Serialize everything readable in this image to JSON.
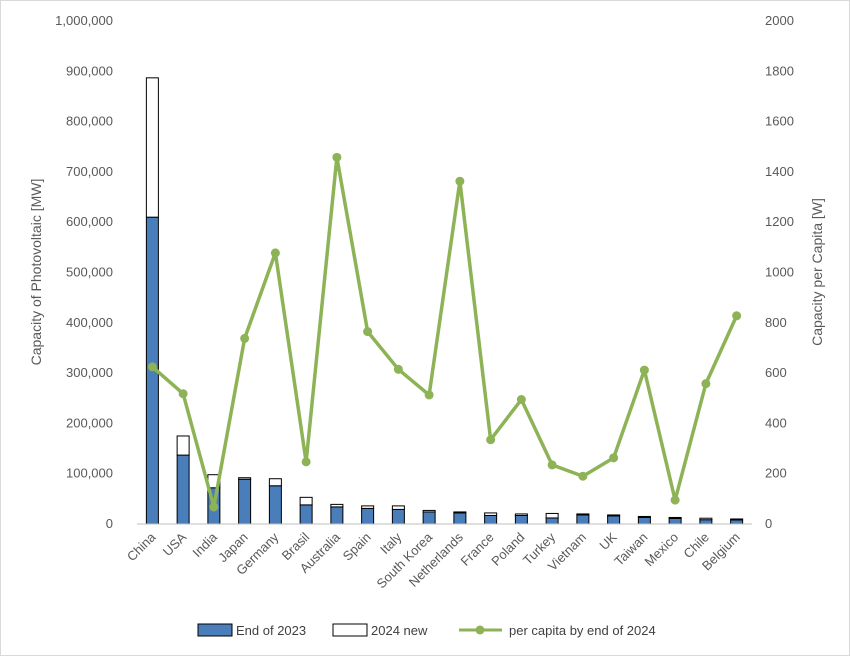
{
  "chart_data": {
    "type": "bar",
    "title": "",
    "categories": [
      "China",
      "USA",
      "India",
      "Japan",
      "Germany",
      "Brasil",
      "Australia",
      "Spain",
      "Italy",
      "South Korea",
      "Netherlands",
      "France",
      "Poland",
      "Turkey",
      "Vietnam",
      "UK",
      "Taiwan",
      "Mexico",
      "Chile",
      "Belgium"
    ],
    "ylabel": "Capacity of Photovoltaic [MW]",
    "y2label": "Capacity per Capita [W]",
    "ylim": [
      0,
      1000000
    ],
    "y2lim": [
      0,
      2000
    ],
    "yticks": [
      "0",
      "100,000",
      "200,000",
      "300,000",
      "400,000",
      "500,000",
      "600,000",
      "700,000",
      "800,000",
      "900,000",
      "1,000,000"
    ],
    "y2ticks": [
      "0",
      "200",
      "400",
      "600",
      "800",
      "1000",
      "1200",
      "1400",
      "1600",
      "1800",
      "2000"
    ],
    "series": [
      {
        "name": "End of 2023",
        "kind": "stacked-bar",
        "color": "#4a7ebb",
        "values": [
          610000,
          137000,
          72000,
          89000,
          76000,
          38000,
          34000,
          31000,
          29000,
          24000,
          22000,
          17000,
          17000,
          12000,
          18000,
          16000,
          13000,
          11000,
          8500,
          8000
        ]
      },
      {
        "name": "2024 new",
        "kind": "stacked-bar",
        "color": "#ffffff",
        "values": [
          277000,
          38000,
          26000,
          3000,
          14000,
          15000,
          5000,
          5000,
          7000,
          3000,
          2000,
          5000,
          3000,
          9000,
          2000,
          2000,
          2000,
          2000,
          3000,
          2000
        ]
      },
      {
        "name": "per capita by end of 2024",
        "kind": "line",
        "axis": "right",
        "color": "#8db356",
        "values": [
          625,
          518,
          68,
          738,
          1078,
          247,
          1458,
          765,
          615,
          513,
          1363,
          335,
          495,
          235,
          190,
          263,
          612,
          95,
          558,
          828
        ]
      }
    ],
    "legend": "bottom",
    "grid": false
  }
}
